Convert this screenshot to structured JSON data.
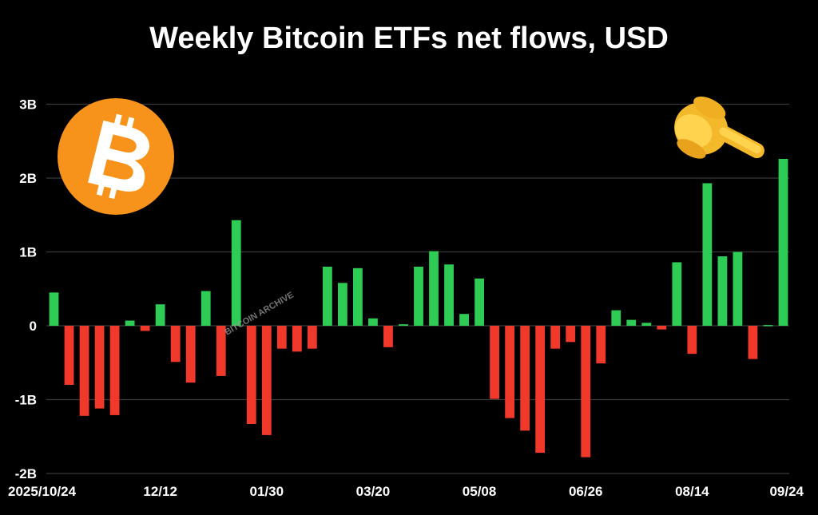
{
  "colors": {
    "background": "#000000",
    "positive": "#2ecc55",
    "negative": "#f0392b",
    "bitcoin_orange": "#f7931a"
  },
  "icons": [
    "bitcoin-logo-icon",
    "pointing-hand-icon"
  ],
  "watermark": "BITCOIN ARCHIVE",
  "chart_data": {
    "type": "bar",
    "title": "Weekly Bitcoin ETFs net flows, USD",
    "xlabel": "",
    "ylabel": "",
    "y_ticks": [
      "3B",
      "2B",
      "1B",
      "0",
      "-1B",
      "-2B"
    ],
    "x_ticks": [
      "2025/10/24",
      "12/12",
      "01/30",
      "03/20",
      "05/08",
      "06/26",
      "08/14",
      "09/24"
    ],
    "ylim": [
      -2,
      3
    ],
    "units": "billions USD",
    "grid": true,
    "values": [
      0.45,
      -0.8,
      -1.22,
      -1.12,
      -1.21,
      0.07,
      -0.07,
      0.29,
      -0.49,
      -0.77,
      0.47,
      -0.68,
      1.43,
      -1.33,
      -1.48,
      -0.31,
      -0.35,
      -0.31,
      0.8,
      0.58,
      0.78,
      0.1,
      -0.29,
      0.02,
      0.8,
      1.01,
      0.83,
      0.16,
      0.64,
      -0.99,
      -1.25,
      -1.42,
      -1.72,
      -0.31,
      -0.22,
      -1.78,
      -0.51,
      0.21,
      0.08,
      0.04,
      -0.05,
      0.86,
      -0.38,
      1.93,
      0.94,
      1.0,
      -0.45,
      0.01,
      2.26
    ]
  }
}
